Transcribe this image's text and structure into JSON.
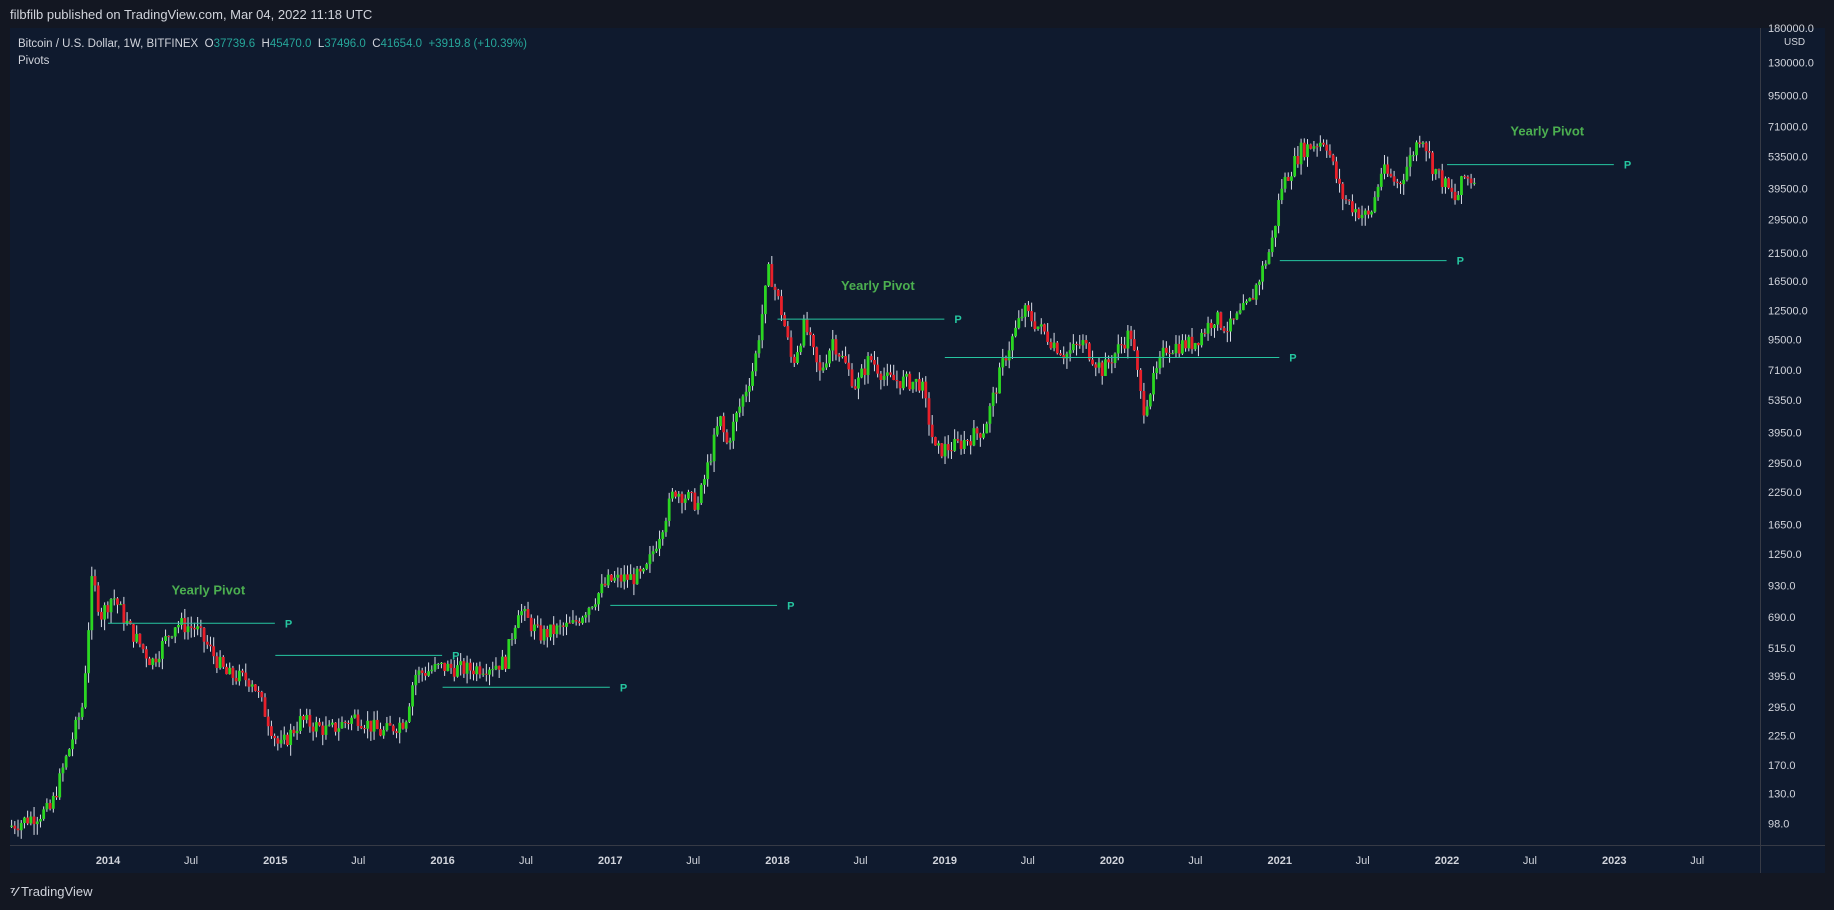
{
  "header": {
    "title": "filbfilb published on TradingView.com, Mar 04, 2022 11:18 UTC"
  },
  "legend": {
    "symbol": "Bitcoin / U.S. Dollar, 1W, BITFINEX",
    "open_label": "O",
    "open": "37739.6",
    "high_label": "H",
    "high": "45470.0",
    "low_label": "L",
    "low": "37496.0",
    "close_label": "C",
    "close": "41654.0",
    "change": "+3919.8 (+10.39%)",
    "indicator": "Pivots"
  },
  "footer": {
    "brand": "TradingView"
  },
  "colors": {
    "background": "#0f1a2e",
    "up": "#2bd622",
    "down": "#e8202a",
    "wick": "#d8dde8",
    "pivot": "#26c6a0",
    "pivot_label": "#4caf50"
  },
  "chart_data": {
    "type": "candlestick",
    "symbol": "Bitcoin / U.S. Dollar",
    "interval": "1W",
    "exchange": "BITFINEX",
    "currency": "USD",
    "y_scale": "log",
    "ylim": [
      80,
      180000
    ],
    "xlim": [
      "2013-06-01",
      "2023-11-15"
    ],
    "price_ticks": [
      "180000.0",
      "130000.0",
      "95000.0",
      "71000.0",
      "53500.0",
      "39500.0",
      "29500.0",
      "21500.0",
      "16500.0",
      "12500.0",
      "9500.0",
      "7100.0",
      "5350.0",
      "3950.0",
      "2950.0",
      "2250.0",
      "1650.0",
      "1250.0",
      "930.0",
      "690.0",
      "515.0",
      "395.0",
      "295.0",
      "225.0",
      "170.0",
      "130.0",
      "98.0"
    ],
    "time_ticks": [
      {
        "label": "2014",
        "date": "2014-01-01",
        "bold": true
      },
      {
        "label": "Jul",
        "date": "2014-07-01",
        "bold": false
      },
      {
        "label": "2015",
        "date": "2015-01-01",
        "bold": true
      },
      {
        "label": "Jul",
        "date": "2015-07-01",
        "bold": false
      },
      {
        "label": "2016",
        "date": "2016-01-01",
        "bold": true
      },
      {
        "label": "Jul",
        "date": "2016-07-01",
        "bold": false
      },
      {
        "label": "2017",
        "date": "2017-01-01",
        "bold": true
      },
      {
        "label": "Jul",
        "date": "2017-07-01",
        "bold": false
      },
      {
        "label": "2018",
        "date": "2018-01-01",
        "bold": true
      },
      {
        "label": "Jul",
        "date": "2018-07-01",
        "bold": false
      },
      {
        "label": "2019",
        "date": "2019-01-01",
        "bold": true
      },
      {
        "label": "Jul",
        "date": "2019-07-01",
        "bold": false
      },
      {
        "label": "2020",
        "date": "2020-01-01",
        "bold": true
      },
      {
        "label": "Jul",
        "date": "2020-07-01",
        "bold": false
      },
      {
        "label": "2021",
        "date": "2021-01-01",
        "bold": true
      },
      {
        "label": "Jul",
        "date": "2021-07-01",
        "bold": false
      },
      {
        "label": "2022",
        "date": "2022-01-01",
        "bold": true
      },
      {
        "label": "Jul",
        "date": "2022-07-01",
        "bold": false
      },
      {
        "label": "2023",
        "date": "2023-01-01",
        "bold": true
      },
      {
        "label": "Jul",
        "date": "2023-07-01",
        "bold": false
      }
    ],
    "price_path": [
      [
        "2013-06-01",
        95
      ],
      [
        "2013-09-01",
        112
      ],
      [
        "2013-11-10",
        300
      ],
      [
        "2013-12-01",
        1000
      ],
      [
        "2013-12-20",
        700
      ],
      [
        "2014-01-15",
        850
      ],
      [
        "2014-02-20",
        620
      ],
      [
        "2014-04-10",
        450
      ],
      [
        "2014-06-01",
        650
      ],
      [
        "2014-07-15",
        620
      ],
      [
        "2014-09-20",
        400
      ],
      [
        "2014-11-15",
        380
      ],
      [
        "2015-01-14",
        200
      ],
      [
        "2015-03-01",
        260
      ],
      [
        "2015-05-01",
        235
      ],
      [
        "2015-07-01",
        270
      ],
      [
        "2015-08-25",
        230
      ],
      [
        "2015-10-15",
        260
      ],
      [
        "2015-11-04",
        400
      ],
      [
        "2016-01-01",
        430
      ],
      [
        "2016-03-01",
        420
      ],
      [
        "2016-05-20",
        450
      ],
      [
        "2016-06-18",
        750
      ],
      [
        "2016-08-03",
        580
      ],
      [
        "2016-10-15",
        640
      ],
      [
        "2017-01-01",
        970
      ],
      [
        "2017-03-20",
        1020
      ],
      [
        "2017-05-25",
        2300
      ],
      [
        "2017-07-15",
        2000
      ],
      [
        "2017-09-01",
        4500
      ],
      [
        "2017-09-15",
        3500
      ],
      [
        "2017-11-15",
        7500
      ],
      [
        "2017-12-17",
        18500
      ],
      [
        "2018-01-15",
        12000
      ],
      [
        "2018-02-06",
        7500
      ],
      [
        "2018-03-05",
        11000
      ],
      [
        "2018-04-06",
        6800
      ],
      [
        "2018-05-05",
        9500
      ],
      [
        "2018-06-25",
        6100
      ],
      [
        "2018-07-25",
        8000
      ],
      [
        "2018-09-01",
        6500
      ],
      [
        "2018-11-14",
        6300
      ],
      [
        "2018-12-15",
        3300
      ],
      [
        "2019-02-01",
        3500
      ],
      [
        "2019-04-01",
        4100
      ],
      [
        "2019-05-15",
        8000
      ],
      [
        "2019-06-26",
        12500
      ],
      [
        "2019-08-01",
        10500
      ],
      [
        "2019-09-25",
        8200
      ],
      [
        "2019-11-01",
        9200
      ],
      [
        "2019-12-15",
        7100
      ],
      [
        "2020-02-14",
        10200
      ],
      [
        "2020-03-12",
        4900
      ],
      [
        "2020-05-01",
        8800
      ],
      [
        "2020-07-01",
        9200
      ],
      [
        "2020-08-15",
        11700
      ],
      [
        "2020-09-15",
        10500
      ],
      [
        "2020-11-01",
        13500
      ],
      [
        "2020-12-17",
        23000
      ],
      [
        "2021-01-08",
        40000
      ],
      [
        "2021-02-20",
        57000
      ],
      [
        "2021-04-14",
        63000
      ],
      [
        "2021-05-19",
        37000
      ],
      [
        "2021-06-22",
        32000
      ],
      [
        "2021-07-20",
        30000
      ],
      [
        "2021-08-15",
        47000
      ],
      [
        "2021-09-21",
        41000
      ],
      [
        "2021-11-10",
        67000
      ],
      [
        "2021-12-04",
        49000
      ],
      [
        "2022-01-24",
        35000
      ],
      [
        "2022-02-10",
        44000
      ],
      [
        "2022-02-28",
        43000
      ]
    ],
    "pivots": [
      {
        "label": "P",
        "price": 650,
        "start": "2014-01-01",
        "end": "2014-12-31",
        "label_text": "Yearly Pivot"
      },
      {
        "label": "P",
        "price": 480,
        "start": "2015-01-01",
        "end": "2015-12-31",
        "label_text": ""
      },
      {
        "label": "P",
        "price": 355,
        "start": "2016-01-01",
        "end": "2016-12-31",
        "label_text": ""
      },
      {
        "label": "P",
        "price": 770,
        "start": "2017-01-01",
        "end": "2017-12-31",
        "label_text": ""
      },
      {
        "label": "P",
        "price": 11500,
        "start": "2018-01-01",
        "end": "2018-12-31",
        "label_text": "Yearly Pivot"
      },
      {
        "label": "P",
        "price": 8000,
        "start": "2019-01-01",
        "end": "2020-12-31",
        "label_text": ""
      },
      {
        "label": "P",
        "price": 20000,
        "start": "2021-01-01",
        "end": "2021-12-31",
        "label_text": ""
      },
      {
        "label": "P",
        "price": 49500,
        "start": "2022-01-01",
        "end": "2022-12-31",
        "label_text": "Yearly Pivot"
      }
    ]
  }
}
